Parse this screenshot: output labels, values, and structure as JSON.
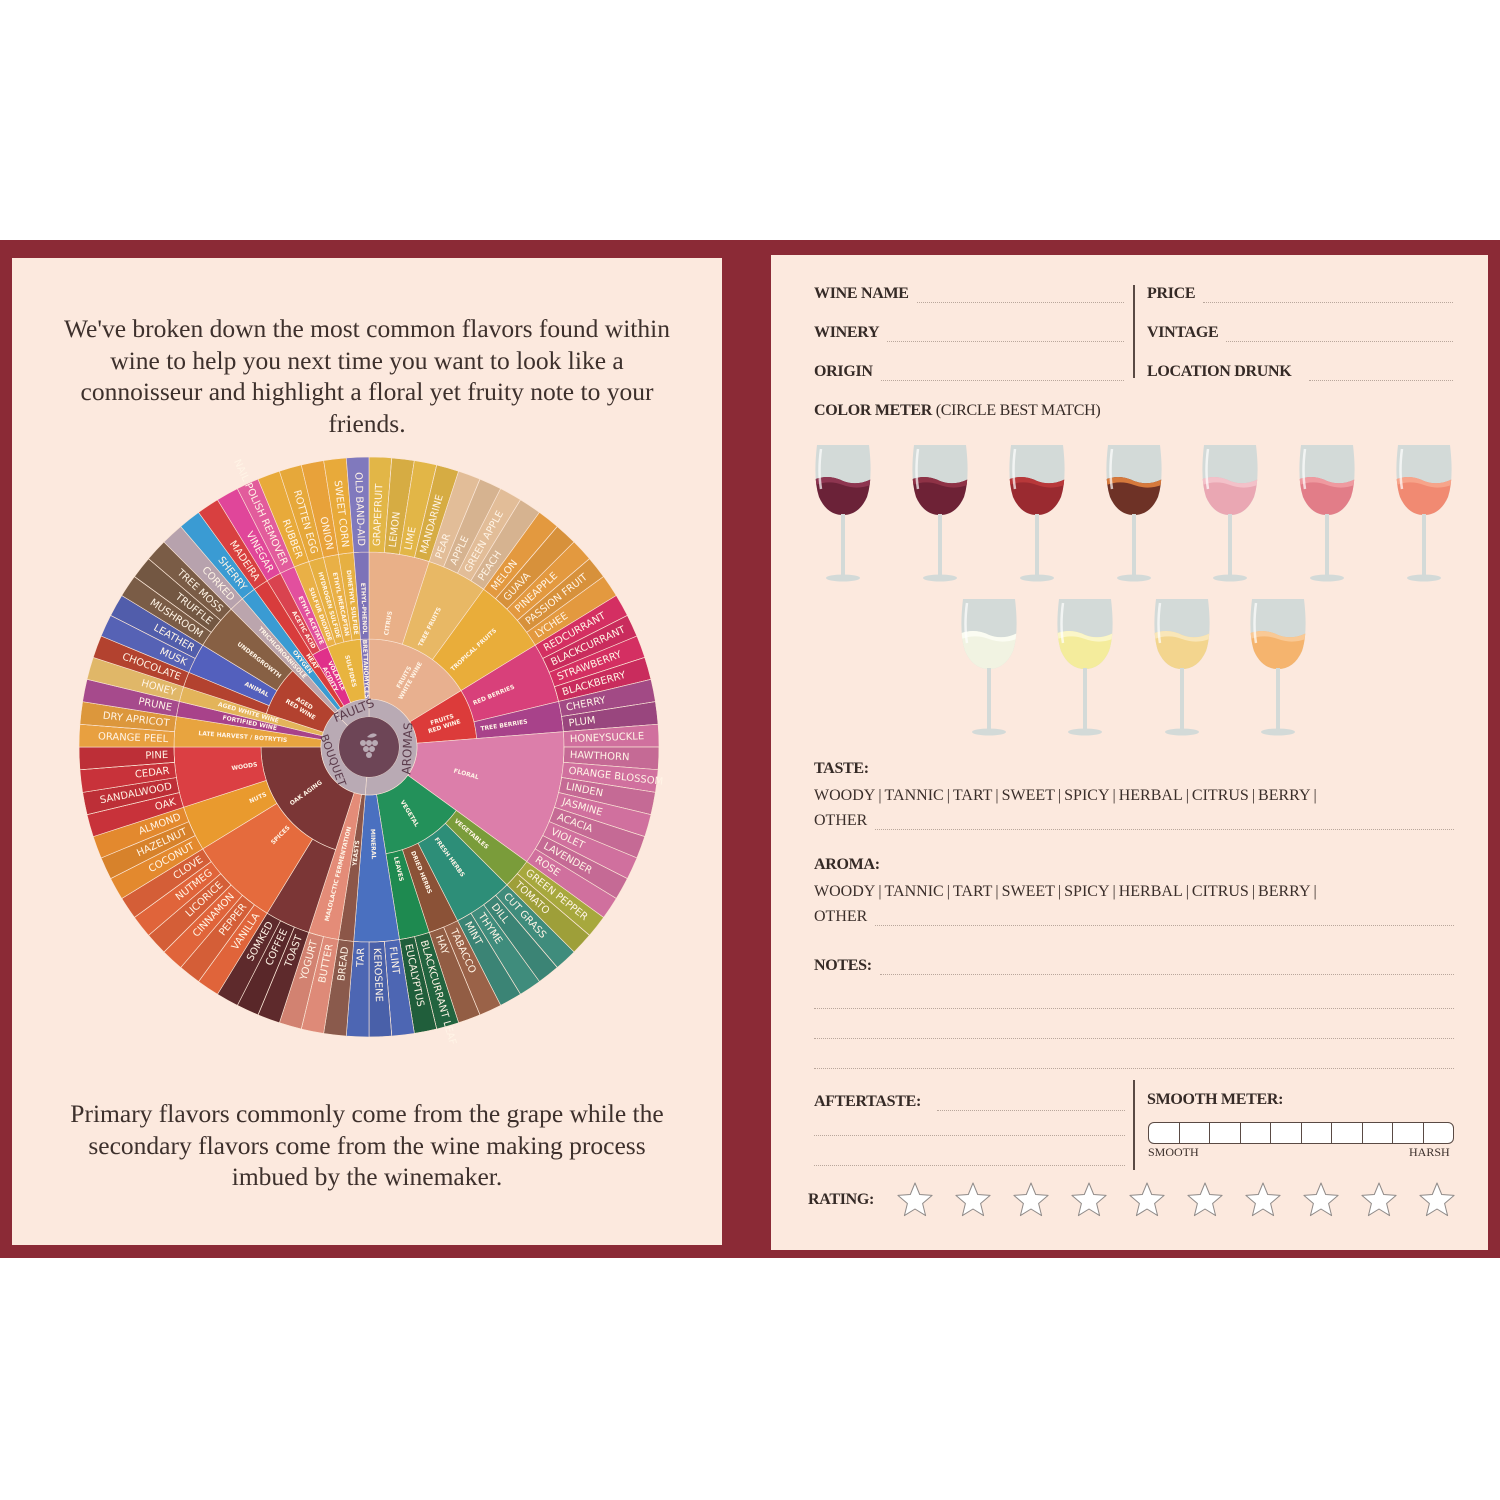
{
  "left_page": {
    "intro": "We've broken down the most common flavors found within wine to help you next time you want to look like a connoisseur and highlight a floral yet fruity note to your friends.",
    "outro": "Primary flavors commonly come from the grape while the secondary flavors come from the wine making process imbued by the winemaker."
  },
  "wheel": {
    "hub_icon": "grapes-icon",
    "groups": [
      {
        "label": "AROMAS",
        "children": [
          {
            "label": "FRUITS WHITE WINE",
            "color": "#e8b08f",
            "children": [
              {
                "label": "CITRUS",
                "color": "#e9b088",
                "leaf_color": "#e2b647",
                "items": [
                  "GRAPEFRUIT",
                  "LEMON",
                  "LIME",
                  "MANDARINE"
                ]
              },
              {
                "label": "TREE FRUITS",
                "color": "#e8b865",
                "leaf_color": "#e2bd98",
                "items": [
                  "PEAR",
                  "APPLE",
                  "GREEN APPLE",
                  "PEACH"
                ]
              },
              {
                "label": "TROPICAL FRUITS",
                "color": "#e9ad3a",
                "leaf_color": "#e3993f",
                "items": [
                  "MELON",
                  "GUAVA",
                  "PINEAPPLE",
                  "PASSION FRUIT",
                  "LYCHEE"
                ]
              }
            ]
          },
          {
            "label": "FRUITS RED WINE",
            "color": "#dc3b3a",
            "children": [
              {
                "label": "RED BERRIES",
                "color": "#d8407a",
                "leaf_color": "#d42f62",
                "items": [
                  "REDCURRANT",
                  "BLACKCURRANT",
                  "STRAWBERRY",
                  "BLACKBERRY"
                ]
              },
              {
                "label": "TREE BERRIES",
                "color": "#a8428a",
                "leaf_color": "#a24a85",
                "items": [
                  "CHERRY",
                  "PLUM"
                ]
              }
            ]
          },
          {
            "label": "FLORAL",
            "color": "#dc7eaa",
            "leaf_color": "#d0709e",
            "items": [
              "HONEYSUCKLE",
              "HAWTHORN",
              "ORANGE BLOSSOM",
              "LINDEN",
              "JASMINE",
              "ACACIA",
              "VIOLET",
              "LAVENDER",
              "ROSE"
            ]
          },
          {
            "label": "VEGETAL",
            "color": "#23915a",
            "children": [
              {
                "label": "VEGETABLES",
                "color": "#7a9c3a",
                "leaf_color": "#a7a83d",
                "items": [
                  "GREEN PEPPER",
                  "TOMATO"
                ]
              },
              {
                "label": "FRESH HERBS",
                "color": "#2d8e78",
                "leaf_color": "#3f8c7c",
                "items": [
                  "CUT GRASS",
                  "DILL",
                  "THYME",
                  "MINT"
                ]
              },
              {
                "label": "DRIED HERBS",
                "color": "#8b5237",
                "leaf_color": "#9a6248",
                "items": [
                  "TABACCO",
                  "HAY"
                ]
              },
              {
                "label": "LEAVES",
                "color": "#1e8a50",
                "leaf_color": "#22643f",
                "items": [
                  "BLACKCURRANT LEAF",
                  "EUCALYPTUS"
                ]
              }
            ]
          },
          {
            "label": "MINERAL",
            "color": "#4a70c0",
            "leaf_color": "#4d66b3",
            "items": [
              "FLINT",
              "KEROSENE",
              "TAR"
            ]
          }
        ]
      },
      {
        "label": "BOUQUET",
        "children": [
          {
            "label": "YEASTS",
            "color": "#8c5648",
            "leaf_color": "#8a5a4c",
            "items": [
              "BREAD"
            ]
          },
          {
            "label": "MALOLACTIC FERMENTATION",
            "color": "#e48c78",
            "leaf_color": "#de8a78",
            "items": [
              "BUTTER",
              "YOGURT"
            ]
          },
          {
            "label": "OAK AGING",
            "color": "#7b3636",
            "children": [
              {
                "label": "",
                "color": "#7b3636",
                "leaf_color": "#5e2a2c",
                "items": [
                  "TOAST",
                  "COFFEE",
                  "SOMKED"
                ]
              },
              {
                "label": "SPICES",
                "color": "#e56b3d",
                "leaf_color": "#e0643a",
                "items": [
                  "VANILLA",
                  "PEPPER",
                  "CINNAMON",
                  "LICORICE",
                  "NUTMEG",
                  "CLOVE"
                ]
              },
              {
                "label": "NUTS",
                "color": "#e99a2e",
                "leaf_color": "#e3892e",
                "items": [
                  "COCONUT",
                  "HAZELNUT",
                  "ALMOND"
                ]
              },
              {
                "label": "WOODS",
                "color": "#db3f43",
                "leaf_color": "#c8323a",
                "items": [
                  "OAK",
                  "SANDALWOOD",
                  "CEDAR",
                  "PINE"
                ]
              }
            ]
          },
          {
            "label": "LATE HARVEST / BOTRYTIS",
            "color": "#e8a43f",
            "leaf_color": "#e8a040",
            "items": [
              "ORANGE PEEL",
              "DRY APRICOT"
            ]
          },
          {
            "label": "FORTIFIED WINE",
            "color": "#a8428a",
            "leaf_color": "#a64a8c",
            "items": [
              "PRUNE"
            ]
          },
          {
            "label": "AGED WHITE WINE",
            "color": "#e3b45a",
            "leaf_color": "#e0b768",
            "items": [
              "HONEY"
            ]
          },
          {
            "label": "AGED RED WINE",
            "color": "#b3422f",
            "children": [
              {
                "label": "",
                "color": "#b3422f",
                "leaf_color": "#b3422f",
                "items": [
                  "CHOCOLATE"
                ]
              },
              {
                "label": "ANIMAL",
                "color": "#5360bd",
                "leaf_color": "#5662b5",
                "items": [
                  "MUSK",
                  "LEATHER"
                ]
              },
              {
                "label": "UNDERGROWTH",
                "color": "#876044",
                "leaf_color": "#7a5c46",
                "items": [
                  "MUSHROOM",
                  "TRUFFLE",
                  "TREE MOSS"
                ]
              }
            ]
          }
        ]
      },
      {
        "label": "FAULTS",
        "children": [
          {
            "label": "TRICHLOROANISOLE",
            "color": "#bba5ad",
            "leaf_color": "#b7a2ad",
            "items": [
              "CORKED"
            ]
          },
          {
            "label": "OXYGEN",
            "color": "#3a9bd3",
            "leaf_color": "#3a9bd3",
            "items": [
              "SHERRY"
            ]
          },
          {
            "label": "HEAT",
            "color": "#d83c3c",
            "leaf_color": "#d84040",
            "items": [
              "MADEIRA"
            ]
          },
          {
            "label": "VOLATILE ACIDITY",
            "color": "#e0308a",
            "children": [
              {
                "label": "ACETIC ACID",
                "color": "#d9434f",
                "leaf_color": "#e0469a",
                "items": [
                  "VINEGAR"
                ]
              },
              {
                "label": "ETHYL ACETATE",
                "color": "#e24f9e",
                "leaf_color": "#e25c9c",
                "items": [
                  "NAIL POLISH REMOVER"
                ]
              }
            ]
          },
          {
            "label": "SULFIDES",
            "color": "#e8b43f",
            "children": [
              {
                "label": "SULFUR DIOXIDE",
                "color": "#e9b046",
                "leaf_color": "#e8aa3a",
                "items": [
                  "RUBBER"
                ]
              },
              {
                "label": "HYDROGEN SULFIDE",
                "color": "#e6b042",
                "leaf_color": "#e6a83a",
                "items": [
                  "ROTTEN EGG"
                ]
              },
              {
                "label": "ETHYL MERCAPTAN",
                "color": "#e9b046",
                "leaf_color": "#e8a23a",
                "items": [
                  "ONION"
                ]
              },
              {
                "label": "DIMETHYL SULFIDE",
                "color": "#e6b042",
                "leaf_color": "#e8aa3a",
                "items": [
                  "SWEET CORN"
                ]
              }
            ]
          },
          {
            "label": "BRETTANOMYCES",
            "color": "#7d72b8",
            "children": [
              {
                "label": "ETHYL-PHENOL",
                "color": "#7d72b8",
                "leaf_color": "#8079bd",
                "items": [
                  "OLD BAND-AID"
                ]
              }
            ]
          }
        ]
      }
    ]
  },
  "form": {
    "wine_name": "WINE NAME",
    "winery": "WINERY",
    "origin": "ORIGIN",
    "price": "PRICE",
    "vintage": "VINTAGE",
    "location": "LOCATION DRUNK",
    "color_meter": "COLOR METER",
    "color_meter_hint": "(CIRCLE BEST MATCH)",
    "glasses_red_rose": [
      "#6b2238",
      "#6e2236",
      "#9a2a30",
      "#6e3226",
      "#eaa7b3",
      "#e27d88",
      "#f18a72"
    ],
    "glasses_red_rose_tops": [
      "#8e3550",
      "#8e3246",
      "#b8383a",
      "#d6793c",
      "#f3c1c9",
      "#ef9aa0",
      "#f7a48a"
    ],
    "glasses_white": [
      "#f1f3e2",
      "#f4ec9c",
      "#f3d58e",
      "#f5b46e"
    ],
    "glasses_white_tops": [
      "#fbfcf2",
      "#fbf6c8",
      "#f9e6b8",
      "#f9c995"
    ],
    "taste": "TASTE:",
    "aroma": "AROMA:",
    "options": [
      "WOODY",
      "TANNIC",
      "TART",
      "SWEET",
      "SPICY",
      "HERBAL",
      "CITRUS",
      "BERRY"
    ],
    "other": "OTHER",
    "notes": "NOTES:",
    "aftertaste": "AFTERTASTE:",
    "smooth_meter": "SMOOTH METER:",
    "smooth": "SMOOTH",
    "harsh": "HARSH",
    "rating": "RATING:",
    "rating_stars_total": 10,
    "rating_stars_filled": 0
  }
}
